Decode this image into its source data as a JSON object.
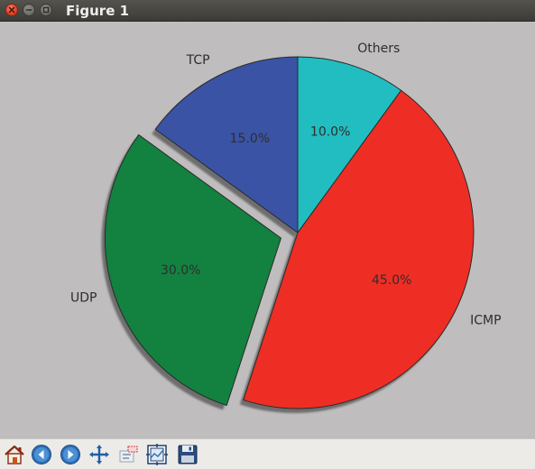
{
  "window": {
    "title": "Figure 1"
  },
  "toolbar": {
    "tools": [
      "home-icon",
      "back-icon",
      "forward-icon",
      "pan-icon",
      "zoom-icon",
      "configure-subplots-icon",
      "save-icon"
    ]
  },
  "colors": {
    "tcp": "#3a53a4",
    "others": "#22bdc1",
    "icmp": "#ee2e24",
    "udp": "#138140",
    "background": "#bfbdbd"
  },
  "chart_data": {
    "type": "pie",
    "categories": [
      "Others",
      "ICMP",
      "UDP",
      "TCP"
    ],
    "values": [
      10.0,
      45.0,
      30.0,
      15.0
    ],
    "value_labels": [
      "10.0%",
      "45.0%",
      "30.0%",
      "15.0%"
    ],
    "explode": [
      0,
      0,
      0.1,
      0
    ],
    "shadow": true,
    "start_angle_deg": 90,
    "direction": "clockwise",
    "colors": [
      "#22bdc1",
      "#ee2e24",
      "#138140",
      "#3a53a4"
    ]
  }
}
